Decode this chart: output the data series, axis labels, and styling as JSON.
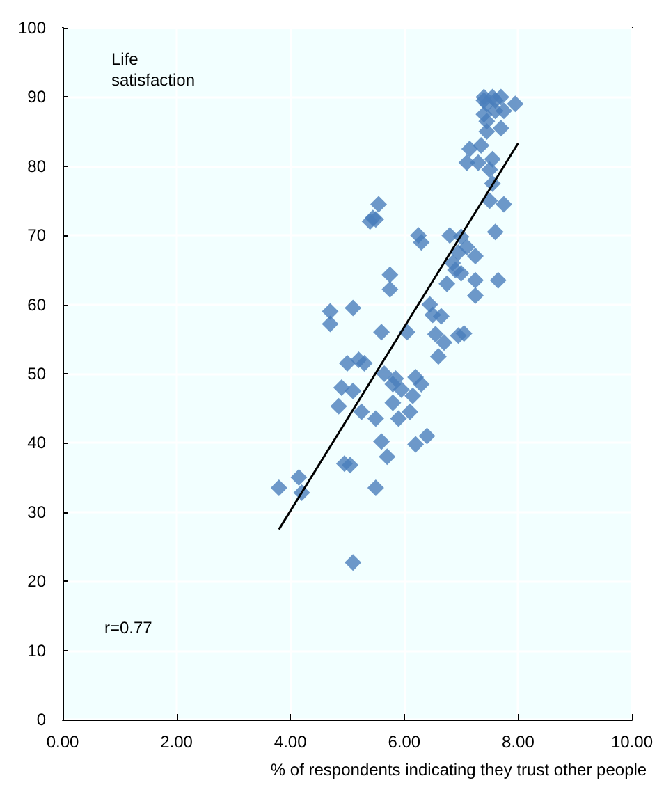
{
  "chart_data": {
    "type": "scatter",
    "ylabel": "Life\nsatisfaction",
    "xlabel": "% of respondents indicating they trust other people",
    "annotations": [
      "r=0.77"
    ],
    "xlim": [
      0,
      10
    ],
    "xticks": [
      {
        "value": 0,
        "label": "0.00"
      },
      {
        "value": 2,
        "label": "2.00"
      },
      {
        "value": 4,
        "label": "4.00"
      },
      {
        "value": 6,
        "label": "6.00"
      },
      {
        "value": 8,
        "label": "8.00"
      },
      {
        "value": 10,
        "label": "10.00"
      }
    ],
    "ylim": [
      0,
      100
    ],
    "yticks": [
      0,
      10,
      20,
      30,
      40,
      50,
      60,
      70,
      80,
      90,
      100
    ],
    "grid": true,
    "marker": "diamond",
    "series": [
      {
        "color": "#4a7ebb",
        "x": [
          3.8,
          4.15,
          4.2,
          4.7,
          4.7,
          4.85,
          4.9,
          4.95,
          5.05,
          5.0,
          5.1,
          5.1,
          5.1,
          5.2,
          5.25,
          5.3,
          5.4,
          5.45,
          5.5,
          5.55,
          5.5,
          5.5,
          5.6,
          5.6,
          5.7,
          5.65,
          5.75,
          5.75,
          5.8,
          5.85,
          5.8,
          5.9,
          5.95,
          6.05,
          6.1,
          6.15,
          6.2,
          6.2,
          6.25,
          6.3,
          6.3,
          6.4,
          6.45,
          6.5,
          6.55,
          6.6,
          6.65,
          6.7,
          6.75,
          6.8,
          6.85,
          6.9,
          6.95,
          6.95,
          7.0,
          7.0,
          7.05,
          7.1,
          7.1,
          7.15,
          7.25,
          7.25,
          7.25,
          7.3,
          7.35,
          7.4,
          7.4,
          7.4,
          7.45,
          7.45,
          7.5,
          7.5,
          7.55,
          7.55,
          7.6,
          7.6,
          7.6,
          7.65,
          7.7,
          7.7,
          7.75,
          7.75,
          7.95,
          7.45,
          7.55
        ],
        "values": [
          33.5,
          35,
          32.8,
          59,
          57.2,
          45.3,
          48,
          37,
          36.8,
          51.5,
          59.5,
          22.7,
          47.5,
          52,
          44.5,
          51.5,
          72,
          72.5,
          72.3,
          74.5,
          43.5,
          33.5,
          56,
          40.2,
          38,
          50,
          64.3,
          62.2,
          48.5,
          49.3,
          45.8,
          43.5,
          47.7,
          56,
          44.5,
          46.8,
          39.8,
          49.5,
          70,
          69,
          48.5,
          41,
          60,
          58.5,
          55.7,
          52.5,
          58.3,
          54.5,
          63,
          70,
          66,
          65,
          55.5,
          67.5,
          69.8,
          64.5,
          55.8,
          68.3,
          80.5,
          82.5,
          67,
          63.5,
          61.3,
          80.5,
          83,
          89.5,
          90,
          87.5,
          85,
          86.5,
          75,
          79.5,
          81,
          77.5,
          88,
          89.5,
          70.5,
          63.5,
          90,
          85.5,
          74.5,
          88,
          89,
          89,
          90
        ]
      },
      {
        "type": "line",
        "color": "#000000",
        "marker": "none",
        "x": [
          3.8,
          8.0
        ],
        "values": [
          27.5,
          83.3
        ]
      }
    ]
  }
}
